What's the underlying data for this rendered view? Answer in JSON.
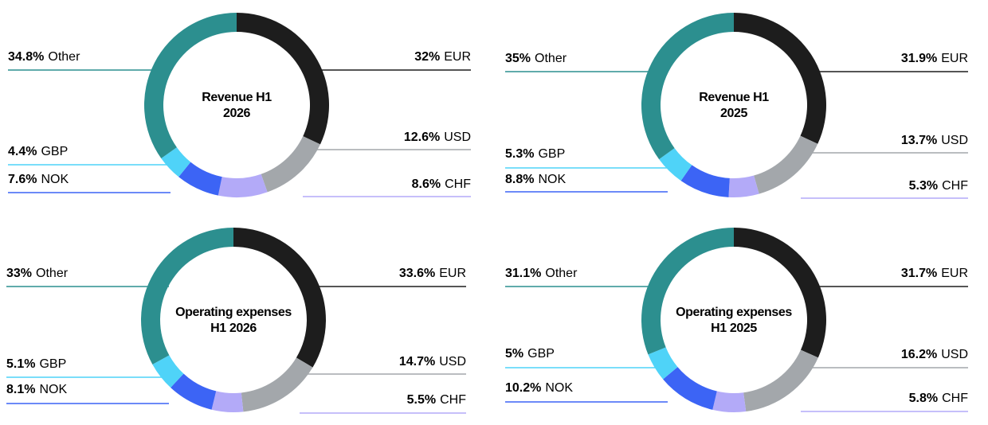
{
  "colors": {
    "EUR": "#1d1d1d",
    "USD": "#a3a7ab",
    "CHF": "#b3aaf8",
    "NOK": "#3c64f5",
    "GBP": "#4fd3f8",
    "Other": "#2c8f8f"
  },
  "chart_data": [
    {
      "type": "pie",
      "title_lines": [
        "Revenue H1",
        "2026"
      ],
      "slices": [
        {
          "label": "EUR",
          "display": "32%",
          "value": 32.0
        },
        {
          "label": "USD",
          "display": "12.6%",
          "value": 12.6
        },
        {
          "label": "CHF",
          "display": "8.6%",
          "value": 8.6
        },
        {
          "label": "NOK",
          "display": "7.6%",
          "value": 7.6
        },
        {
          "label": "GBP",
          "display": "4.4%",
          "value": 4.4
        },
        {
          "label": "Other",
          "display": "34.8%",
          "value": 34.8
        }
      ]
    },
    {
      "type": "pie",
      "title_lines": [
        "Revenue H1",
        "2025"
      ],
      "slices": [
        {
          "label": "EUR",
          "display": "31.9%",
          "value": 31.9
        },
        {
          "label": "USD",
          "display": "13.7%",
          "value": 13.7
        },
        {
          "label": "CHF",
          "display": "5.3%",
          "value": 5.3
        },
        {
          "label": "NOK",
          "display": "8.8%",
          "value": 8.8
        },
        {
          "label": "GBP",
          "display": "5.3%",
          "value": 5.3
        },
        {
          "label": "Other",
          "display": "35%",
          "value": 35.0
        }
      ]
    },
    {
      "type": "pie",
      "title_lines": [
        "Operating expenses",
        "H1 2026"
      ],
      "slices": [
        {
          "label": "EUR",
          "display": "33.6%",
          "value": 33.6
        },
        {
          "label": "USD",
          "display": "14.7%",
          "value": 14.7
        },
        {
          "label": "CHF",
          "display": "5.5%",
          "value": 5.5
        },
        {
          "label": "NOK",
          "display": "8.1%",
          "value": 8.1
        },
        {
          "label": "GBP",
          "display": "5.1%",
          "value": 5.1
        },
        {
          "label": "Other",
          "display": "33%",
          "value": 33.0
        }
      ]
    },
    {
      "type": "pie",
      "title_lines": [
        "Operating expenses",
        "H1 2025"
      ],
      "slices": [
        {
          "label": "EUR",
          "display": "31.7%",
          "value": 31.7
        },
        {
          "label": "USD",
          "display": "16.2%",
          "value": 16.2
        },
        {
          "label": "CHF",
          "display": "5.8%",
          "value": 5.8
        },
        {
          "label": "NOK",
          "display": "10.2%",
          "value": 10.2
        },
        {
          "label": "GBP",
          "display": "5%",
          "value": 5.0
        },
        {
          "label": "Other",
          "display": "31.1%",
          "value": 31.1
        }
      ]
    }
  ]
}
